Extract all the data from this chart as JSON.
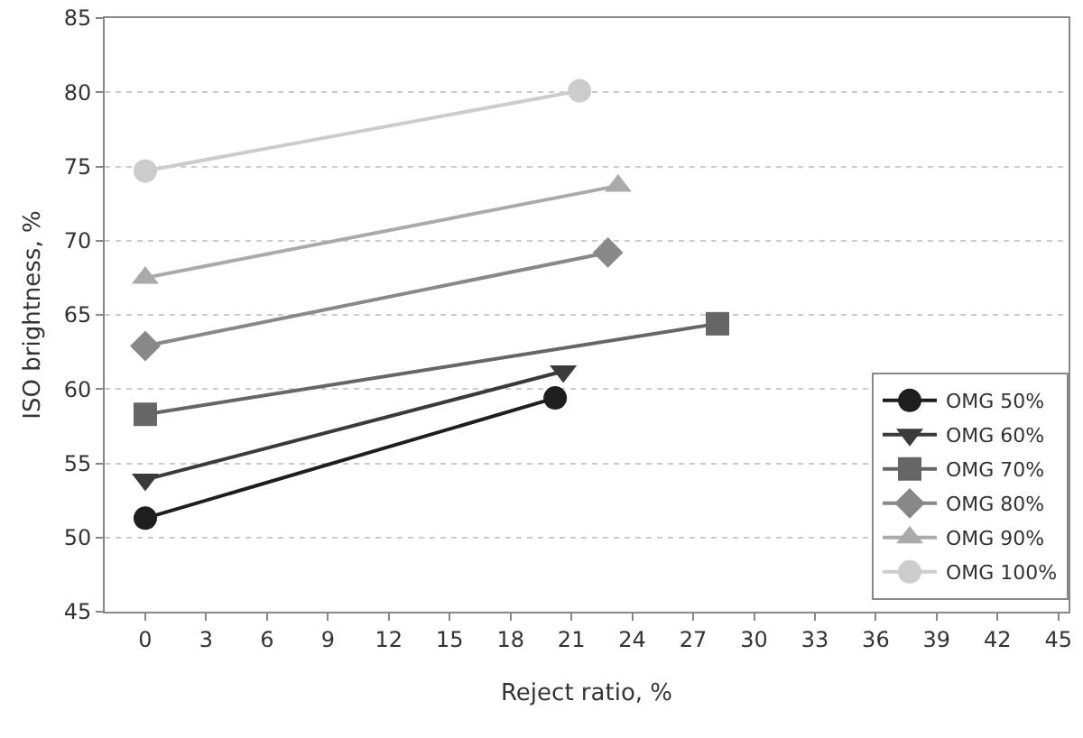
{
  "chart_data": {
    "type": "line",
    "xlabel": "Reject ratio, %",
    "ylabel": "ISO brightness, %",
    "xlim": [
      -2,
      45.5
    ],
    "xticks": [
      0,
      3,
      6,
      9,
      12,
      15,
      18,
      21,
      24,
      27,
      30,
      33,
      36,
      39,
      42,
      45
    ],
    "ylim": [
      45,
      85
    ],
    "yticks": [
      45,
      50,
      55,
      60,
      65,
      70,
      75,
      80,
      85
    ],
    "grid": "y",
    "legend": "bottom right",
    "series": [
      {
        "name": "OMG 50%",
        "color": "#1e1e1e",
        "marker": "circle",
        "x": [
          0,
          20.2
        ],
        "values": [
          51.3,
          59.4
        ]
      },
      {
        "name": "OMG 60%",
        "color": "#3a3a3a",
        "marker": "triangle-down",
        "x": [
          0,
          20.6
        ],
        "values": [
          53.9,
          61.2
        ]
      },
      {
        "name": "OMG 70%",
        "color": "#666666",
        "marker": "square",
        "x": [
          0,
          28.2
        ],
        "values": [
          58.3,
          64.4
        ]
      },
      {
        "name": "OMG 80%",
        "color": "#888888",
        "marker": "diamond",
        "x": [
          0,
          22.8
        ],
        "values": [
          62.9,
          69.2
        ]
      },
      {
        "name": "OMG 90%",
        "color": "#aaaaaa",
        "marker": "triangle",
        "x": [
          0,
          23.3
        ],
        "values": [
          67.5,
          73.7
        ]
      },
      {
        "name": "OMG 100%",
        "color": "#cccccc",
        "marker": "circle",
        "x": [
          0,
          21.4
        ],
        "values": [
          74.7,
          80.1
        ]
      }
    ]
  }
}
